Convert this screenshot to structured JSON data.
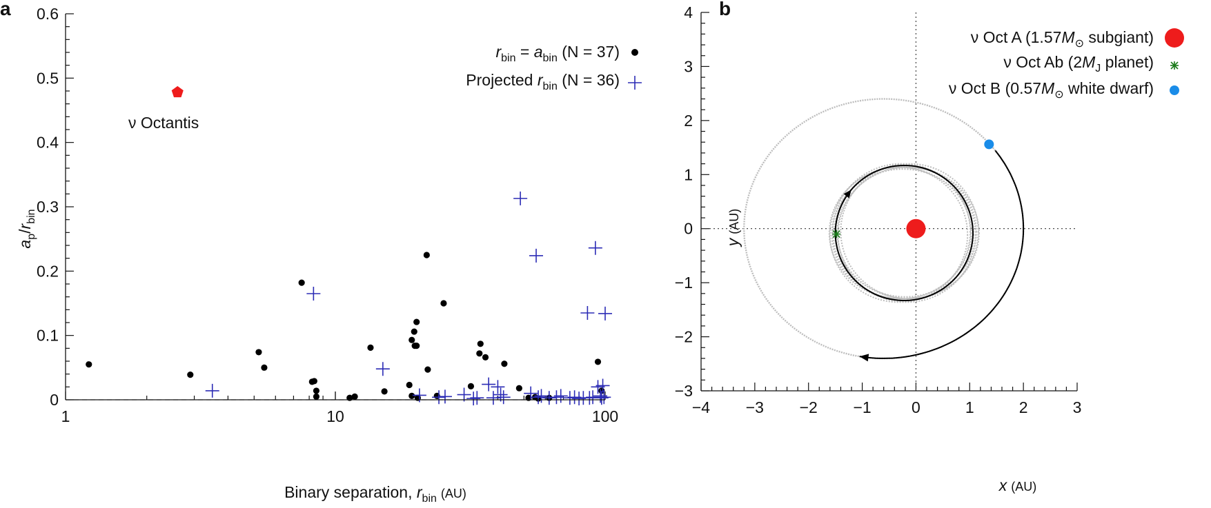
{
  "chart_data": [
    {
      "panel": "a",
      "type": "scatter",
      "xscale": "log",
      "xlim": [
        1,
        100
      ],
      "ylim": [
        0,
        0.6
      ],
      "xticks": [
        {
          "v": 1,
          "label": "1"
        },
        {
          "v": 10,
          "label": "10"
        },
        {
          "v": 100,
          "label": "100"
        }
      ],
      "yticks": [
        {
          "v": 0,
          "label": "0"
        },
        {
          "v": 0.1,
          "label": "0.1"
        },
        {
          "v": 0.2,
          "label": "0.2"
        },
        {
          "v": 0.3,
          "label": "0.3"
        },
        {
          "v": 0.4,
          "label": "0.4"
        },
        {
          "v": 0.5,
          "label": "0.5"
        },
        {
          "v": 0.6,
          "label": "0.6"
        }
      ],
      "xlabel": {
        "main": "Binary separation, ",
        "var": "r",
        "sub": "bin",
        "unit": "(AU)"
      },
      "ylabel": {
        "v1": "a",
        "s1": "p",
        "slash": "/",
        "v2": "r",
        "s2": "bin"
      },
      "legend_position": "top-right",
      "reference_line_y": 0,
      "series": [
        {
          "legend": {
            "var": "r",
            "sub1": "bin",
            "eq": " = ",
            "var2": "a",
            "sub2": "bin",
            "rest": " (N = 37)"
          },
          "marker": "dot",
          "color": "#000000",
          "points": [
            [
              1.22,
              0.055
            ],
            [
              2.9,
              0.039
            ],
            [
              5.2,
              0.074
            ],
            [
              5.45,
              0.05
            ],
            [
              7.5,
              0.182
            ],
            [
              8.2,
              0.028
            ],
            [
              8.35,
              0.029
            ],
            [
              8.5,
              0.014
            ],
            [
              8.5,
              0.005
            ],
            [
              11.3,
              0.003
            ],
            [
              11.8,
              0.005
            ],
            [
              13.5,
              0.081
            ],
            [
              15.2,
              0.013
            ],
            [
              18.8,
              0.023
            ],
            [
              19.2,
              0.093
            ],
            [
              19.6,
              0.106
            ],
            [
              19.7,
              0.084
            ],
            [
              20.0,
              0.121
            ],
            [
              20.0,
              0.084
            ],
            [
              19.2,
              0.006
            ],
            [
              20.2,
              0.003
            ],
            [
              21.8,
              0.225
            ],
            [
              22.0,
              0.047
            ],
            [
              23.8,
              0.006
            ],
            [
              25.2,
              0.15
            ],
            [
              31.8,
              0.021
            ],
            [
              34.5,
              0.087
            ],
            [
              34.2,
              0.072
            ],
            [
              36.0,
              0.066
            ],
            [
              42.3,
              0.056
            ],
            [
              48.0,
              0.018
            ],
            [
              52.0,
              0.003
            ],
            [
              55.0,
              0.004
            ],
            [
              56.5,
              0.002
            ],
            [
              62.0,
              0.003
            ],
            [
              94.0,
              0.059
            ],
            [
              97.0,
              0.014
            ]
          ]
        },
        {
          "legend": {
            "var": "",
            "sub1": "",
            "eq": "",
            "var2": "",
            "sub2": "",
            "rest": "Projected r bin (N = 36)"
          },
          "legend_parts": {
            "pre": "Projected ",
            "var": "r",
            "sub": "bin",
            "post": " (N = 36)"
          },
          "marker": "plus",
          "color": "#2b2bb5",
          "points": [
            [
              3.5,
              0.014
            ],
            [
              8.3,
              0.165
            ],
            [
              15.0,
              0.048
            ],
            [
              20.5,
              0.007
            ],
            [
              24.2,
              0.004
            ],
            [
              25.5,
              0.005
            ],
            [
              30.0,
              0.008
            ],
            [
              32.5,
              0.002
            ],
            [
              33.5,
              0.003
            ],
            [
              37.0,
              0.024
            ],
            [
              38.5,
              0.003
            ],
            [
              40.0,
              0.02
            ],
            [
              41.0,
              0.008
            ],
            [
              42.0,
              0.004
            ],
            [
              48.5,
              0.313
            ],
            [
              53.0,
              0.01
            ],
            [
              55.5,
              0.224
            ],
            [
              56.5,
              0.004
            ],
            [
              58.0,
              0.006
            ],
            [
              62.0,
              0.003
            ],
            [
              66.0,
              0.004
            ],
            [
              68.5,
              0.006
            ],
            [
              74.0,
              0.003
            ],
            [
              77.0,
              0.004
            ],
            [
              80.0,
              0.002
            ],
            [
              83.0,
              0.003
            ],
            [
              86.0,
              0.135
            ],
            [
              87.5,
              0.003
            ],
            [
              90.0,
              0.004
            ],
            [
              92.0,
              0.236
            ],
            [
              94.0,
              0.02
            ],
            [
              96.0,
              0.006
            ],
            [
              97.0,
              0.003
            ],
            [
              98.0,
              0.022
            ],
            [
              99.0,
              0.004
            ],
            [
              100.0,
              0.134
            ]
          ]
        },
        {
          "name": "ν Octantis",
          "marker": "pentagon",
          "color": "#ee1c1c",
          "points": [
            [
              2.6,
              0.478
            ]
          ]
        }
      ]
    },
    {
      "panel": "b",
      "type": "line",
      "xlim": [
        -4,
        3
      ],
      "ylim": [
        -3,
        4
      ],
      "xticks": [
        {
          "v": -4,
          "label": "−4"
        },
        {
          "v": -3,
          "label": "−3"
        },
        {
          "v": -2,
          "label": "−2"
        },
        {
          "v": -1,
          "label": "−1"
        },
        {
          "v": 0,
          "label": "0"
        },
        {
          "v": 1,
          "label": "1"
        },
        {
          "v": 2,
          "label": "2"
        },
        {
          "v": 3,
          "label": "3"
        }
      ],
      "yticks": [
        {
          "v": -3,
          "label": "−3"
        },
        {
          "v": -2,
          "label": "−2"
        },
        {
          "v": -1,
          "label": "−1"
        },
        {
          "v": 0,
          "label": "0"
        },
        {
          "v": 1,
          "label": "1"
        },
        {
          "v": 2,
          "label": "2"
        },
        {
          "v": 3,
          "label": "3"
        },
        {
          "v": 4,
          "label": "4"
        }
      ],
      "xlabel": {
        "var": "x",
        "unit": "(AU)"
      },
      "ylabel": {
        "var": "y",
        "unit": "(AU)"
      },
      "legend_position": "top-right",
      "reference_lines": {
        "x": 0,
        "y": 0
      },
      "bodies": [
        {
          "legend": {
            "pre": "ν Oct A (1.57",
            "var": "M",
            "sub": "⊙",
            "post": " subgiant)"
          },
          "marker": "large-dot",
          "color": "#ee1c1c",
          "position": [
            0,
            0
          ]
        },
        {
          "legend": {
            "pre": "ν Oct Ab (2",
            "var": "M",
            "sub": "J",
            "post": " planet)"
          },
          "marker": "asterisk",
          "color": "#1a7a1a",
          "position": [
            -1.48,
            -0.1
          ]
        },
        {
          "legend": {
            "pre": "ν Oct B (0.57",
            "var": "M",
            "sub": "⊙",
            "post": " white dwarf)"
          },
          "marker": "dot",
          "color": "#1a8ce8",
          "position": [
            1.36,
            1.56
          ]
        }
      ],
      "orbits": {
        "binary": {
          "center": [
            -0.6,
            0.0
          ],
          "semi_axis_x": 2.6,
          "semi_axis_y": 2.4
        },
        "planet": {
          "center": [
            -0.22,
            -0.08
          ],
          "radius_x": 1.28,
          "radius_y": 1.25
        }
      }
    }
  ],
  "panel_labels": {
    "a": "a",
    "b": "b"
  },
  "annotation": {
    "text": "ν Octantis"
  }
}
